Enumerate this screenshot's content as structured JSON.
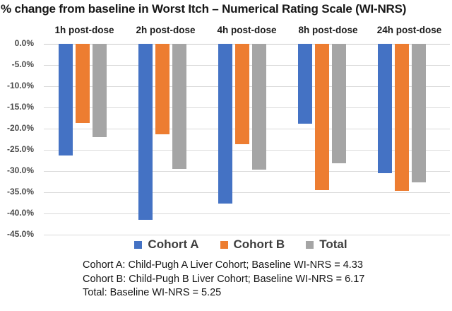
{
  "chart_data": {
    "type": "bar",
    "title": "% change from baseline in Worst Itch – Numerical Rating Scale (WI-NRS)",
    "categories": [
      "1h post-dose",
      "2h post-dose",
      "4h post-dose",
      "8h post-dose",
      "24h post-dose"
    ],
    "series": [
      {
        "name": "Cohort A",
        "color": "#4472C4",
        "values": [
          -26.4,
          -41.5,
          -37.7,
          -18.8,
          -30.5
        ]
      },
      {
        "name": "Cohort B",
        "color": "#ED7D31",
        "values": [
          -18.7,
          -21.4,
          -23.7,
          -34.5,
          -34.7
        ]
      },
      {
        "name": "Total",
        "color": "#A5A5A5",
        "values": [
          -22.0,
          -29.5,
          -29.6,
          -28.1,
          -32.7
        ]
      }
    ],
    "ylabel": "% change from baseline",
    "ylim": [
      -45,
      0
    ],
    "y_ticks": [
      "0.0%",
      "-5.0%",
      "-10.0%",
      "-15.0%",
      "-20.0%",
      "-25.0%",
      "-30.0%",
      "-35.0%",
      "-40.0%",
      "-45.0%"
    ],
    "grid": true,
    "legend_position": "bottom",
    "category_labels_position": "top"
  },
  "footnotes": {
    "lines": [
      "Cohort A: Child-Pugh A Liver Cohort; Baseline WI-NRS = 4.33",
      "Cohort B: Child-Pugh B Liver Cohort; Baseline WI-NRS = 6.17",
      "Total: Baseline WI-NRS = 5.25"
    ]
  }
}
